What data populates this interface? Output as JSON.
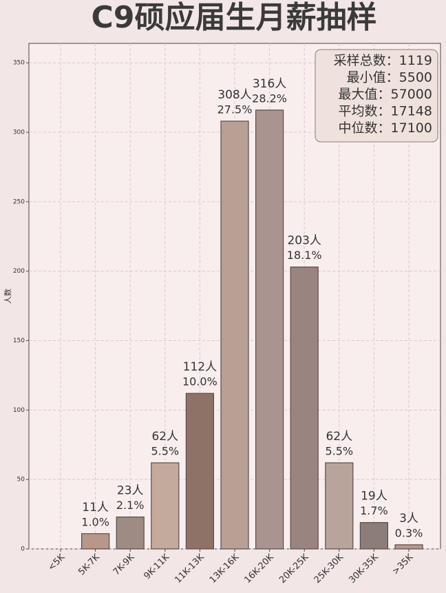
{
  "chart_data": {
    "type": "bar",
    "title": "C9硕应届生月薪抽样",
    "y_label": "人数",
    "categories": [
      "<5K",
      "5K-7K",
      "7K-9K",
      "9K-11K",
      "11K-13K",
      "13K-16K",
      "16K-20K",
      "20K-25K",
      "25K-30K",
      "30K-35K",
      ">35K"
    ],
    "values": [
      0,
      11,
      23,
      62,
      112,
      308,
      316,
      203,
      62,
      19,
      3
    ],
    "value_labels": [
      null,
      "11人",
      "23人",
      "62人",
      "112人",
      "308人",
      "316人",
      "203人",
      "62人",
      "19人",
      "3人"
    ],
    "percents": [
      null,
      1.0,
      2.1,
      5.5,
      10.0,
      27.5,
      28.2,
      18.1,
      5.5,
      1.7,
      0.3
    ],
    "percent_labels": [
      null,
      "1.0%",
      "2.1%",
      "5.5%",
      "10.0%",
      "27.5%",
      "28.2%",
      "18.1%",
      "5.5%",
      "1.7%",
      "0.3%"
    ],
    "colors": [
      "#7a6a60",
      "#b8968a",
      "#9e8c84",
      "#c4aa9c",
      "#8e7268",
      "#b8a094",
      "#a99490",
      "#9a8480",
      "#b8a49a",
      "#8c7d78",
      "#b49a90"
    ],
    "ylim": [
      0,
      364
    ],
    "yticks": [
      0,
      50,
      100,
      150,
      200,
      250,
      300,
      350
    ],
    "grid": true,
    "stats": [
      {
        "label": "采样总数：",
        "value": 1119
      },
      {
        "label": "最小值：",
        "value": 5500
      },
      {
        "label": "最大值：",
        "value": 57000
      },
      {
        "label": "平均数：",
        "value": 17148
      },
      {
        "label": "中位数：",
        "value": 17100
      }
    ]
  }
}
